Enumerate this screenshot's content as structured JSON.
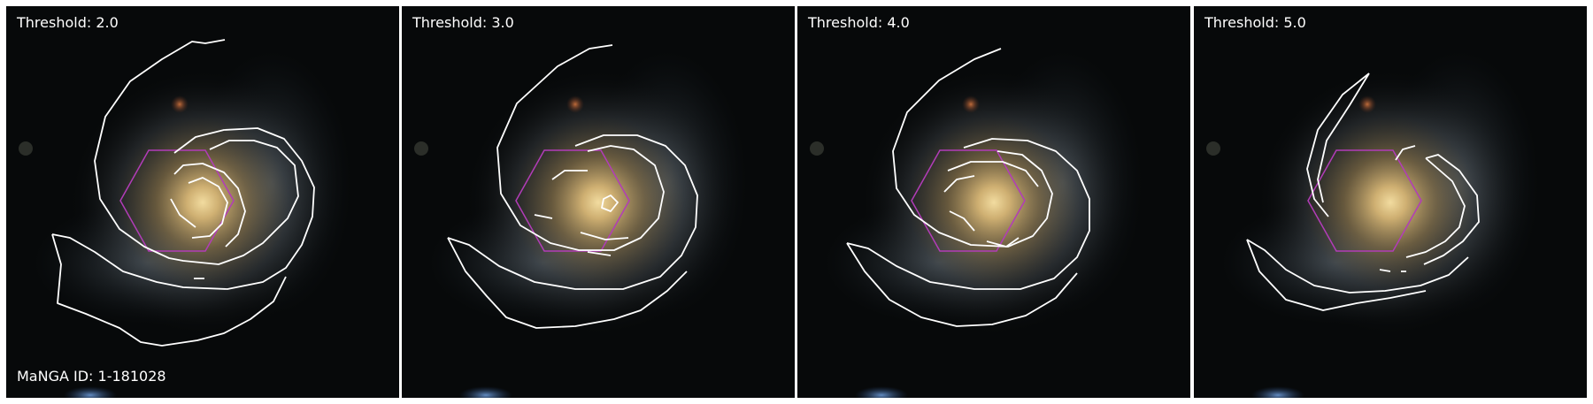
{
  "panels": [
    {
      "threshold_label": "Threshold: 2.0"
    },
    {
      "threshold_label": "Threshold: 3.0"
    },
    {
      "threshold_label": "Threshold: 4.0"
    },
    {
      "threshold_label": "Threshold: 5.0"
    }
  ],
  "manga_id_label": "MaNGA ID: 1-181028",
  "colors": {
    "background": "#ffffff",
    "contour": "#ffffff",
    "hexagon": "#b23cb8",
    "text": "#ffffff"
  }
}
